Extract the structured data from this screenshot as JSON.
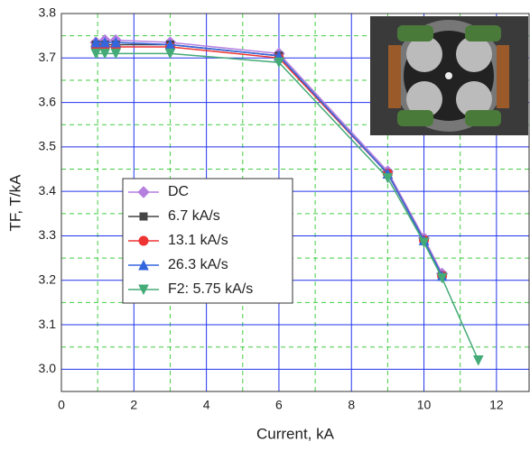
{
  "chart_data": {
    "type": "line",
    "xlabel": "Current, kA",
    "ylabel": "TF, T/kA",
    "xlim": [
      0,
      12.9
    ],
    "ylim": [
      2.95,
      3.8
    ],
    "xticks": [
      0,
      2,
      4,
      6,
      8,
      10,
      12
    ],
    "yticks": [
      {
        "value": 3,
        "label": "3.0"
      },
      3.1,
      3.2,
      3.3,
      3.4,
      3.5,
      3.6,
      3.7,
      3.8
    ],
    "xminor": [
      1,
      3,
      5,
      7,
      9,
      11
    ],
    "yminor": [
      3.05,
      3.15,
      3.25,
      3.35,
      3.45,
      3.55,
      3.65,
      3.75
    ],
    "grid": true,
    "grid_color": "#2233ee",
    "minor_grid_color": "#44cc44",
    "series": [
      {
        "name": "DC",
        "color": "#b57fe0",
        "marker": "diamond",
        "x": [
          0.95,
          1.2,
          1.5,
          3,
          6,
          9,
          10,
          10.5
        ],
        "values": [
          3.735,
          3.74,
          3.74,
          3.735,
          3.71,
          3.445,
          3.295,
          3.215
        ]
      },
      {
        "name": "6.7 kA/s",
        "color": "#444444",
        "marker": "square",
        "x": [
          0.95,
          1.2,
          1.5,
          3,
          6,
          9,
          10,
          10.5
        ],
        "values": [
          3.73,
          3.73,
          3.73,
          3.73,
          3.705,
          3.44,
          3.29,
          3.21
        ]
      },
      {
        "name": "13.1  kA/s",
        "color": "#ee3333",
        "marker": "circle",
        "x": [
          0.95,
          1.2,
          1.5,
          3,
          6,
          9,
          10,
          10.5
        ],
        "values": [
          3.725,
          3.725,
          3.725,
          3.725,
          3.7,
          3.44,
          3.29,
          3.21
        ]
      },
      {
        "name": "26.3  kA/s",
        "color": "#3366dd",
        "marker": "triangle",
        "x": [
          0.95,
          1.2,
          1.5,
          3,
          6,
          9,
          10,
          10.5
        ],
        "values": [
          3.735,
          3.735,
          3.735,
          3.73,
          3.705,
          3.44,
          3.29,
          3.21
        ]
      },
      {
        "name": "F2: 5.75 kA/s",
        "color": "#44aa77",
        "marker": "triangle-down",
        "x": [
          0.95,
          1.2,
          1.5,
          3,
          6,
          9,
          10,
          10.5,
          11.5
        ],
        "values": [
          3.71,
          3.71,
          3.71,
          3.71,
          3.69,
          3.43,
          3.285,
          3.205,
          3.02
        ]
      }
    ]
  }
}
